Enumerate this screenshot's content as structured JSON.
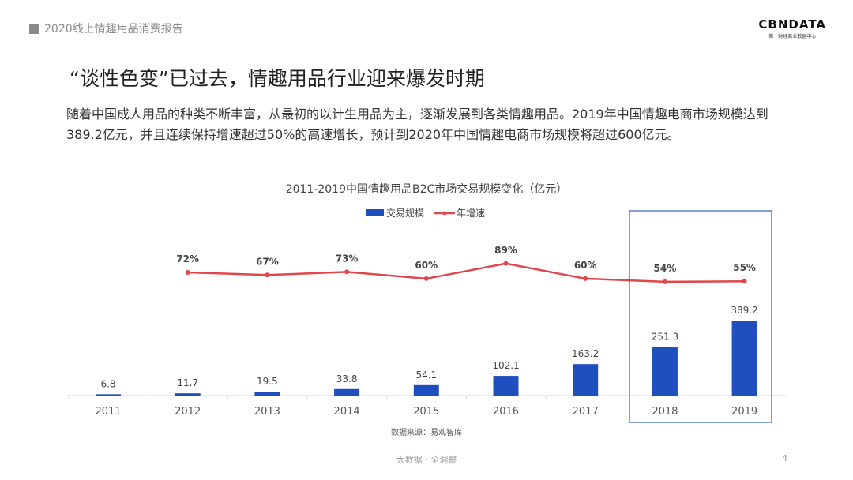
{
  "header": {
    "report_title": "2020线上情趣用品消费报告",
    "logo_text": "CBNDATA",
    "logo_subtitle": "第一财经商业数据中心"
  },
  "slide": {
    "title": "“谈性色变”已过去，情趣用品行业迎来爆发时期",
    "description": "随着中国成人用品的种类不断丰富，从最初的以计生用品为主，逐渐发展到各类情趣用品。2019年中国情趣电商市场规模达到389.2亿元，并且连续保持增速超过50%的高速增长，预计到2020年中国情趣电商市场规模将超过600亿元。",
    "footer": "大数据 · 全洞察",
    "page_number": "4"
  },
  "chart_data": {
    "type": "bar+line",
    "title": "2011-2019中国情趣用品B2C市场交易规模变化（亿元）",
    "categories": [
      "2011",
      "2012",
      "2013",
      "2014",
      "2015",
      "2016",
      "2017",
      "2018",
      "2019"
    ],
    "series": [
      {
        "name": "交易规模",
        "type": "bar",
        "color": "#1f4fbf",
        "values": [
          6.8,
          11.7,
          19.5,
          33.8,
          54.1,
          102.1,
          163.2,
          251.3,
          389.2
        ],
        "labels": [
          "6.8",
          "11.7",
          "19.5",
          "33.8",
          "54.1",
          "102.1",
          "163.2",
          "251.3",
          "389.2"
        ]
      },
      {
        "name": "年增速",
        "type": "line",
        "color": "#e0474c",
        "values": [
          null,
          72,
          67,
          73,
          60,
          89,
          60,
          54,
          55
        ],
        "labels": [
          "",
          "72%",
          "67%",
          "73%",
          "60%",
          "89%",
          "60%",
          "54%",
          "55%"
        ]
      }
    ],
    "legend": "top-center",
    "grid": false,
    "highlight": [
      "2018",
      "2019"
    ],
    "source": "数据来源：易观智库"
  }
}
